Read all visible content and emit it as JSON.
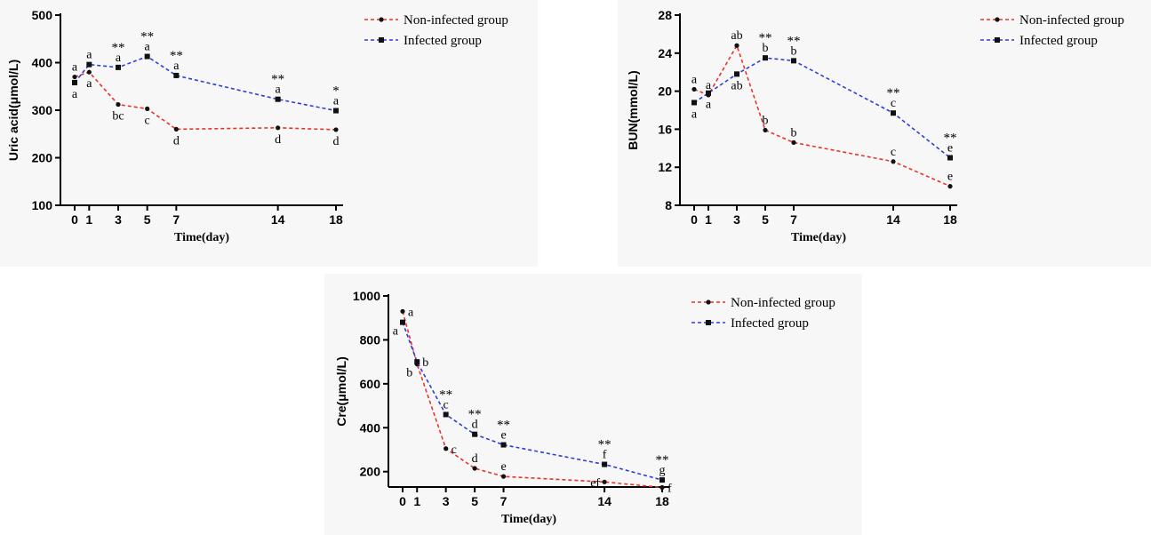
{
  "colors": {
    "noninfected": "#e8332a",
    "infected": "#2b3fd6"
  },
  "chart_data": [
    {
      "id": "uric",
      "type": "line",
      "title": "",
      "xlabel": "Time(day)",
      "ylabel": "Uric acid(μmol/L)",
      "x": [
        0,
        1,
        3,
        5,
        7,
        14,
        18
      ],
      "xticks": [
        "0",
        "1",
        "3",
        "5",
        "7",
        "14",
        "18"
      ],
      "ylim": [
        100,
        500
      ],
      "yticks": [
        100,
        200,
        300,
        400,
        500
      ],
      "legend_position": "top-right",
      "series": [
        {
          "name": "Non-infected group",
          "key": "noninfected",
          "marker": "circle",
          "values": [
            370,
            380,
            312,
            303,
            260,
            263,
            259
          ],
          "labels": [
            "a",
            "a",
            "bc",
            "c",
            "d",
            "d",
            "d"
          ],
          "label_pos": [
            "above",
            "below",
            "below",
            "below",
            "below",
            "below",
            "below"
          ]
        },
        {
          "name": "Infected group",
          "key": "infected",
          "marker": "square",
          "values": [
            358,
            396,
            390,
            413,
            373,
            323,
            299
          ],
          "labels": [
            "a",
            "a",
            "a",
            "a",
            "a",
            "a",
            "a"
          ],
          "label_pos": [
            "below",
            "above",
            "above",
            "above",
            "above",
            "above",
            "above"
          ]
        }
      ],
      "significance": [
        "",
        "",
        "**",
        "**",
        "**",
        "**",
        "*"
      ]
    },
    {
      "id": "bun",
      "type": "line",
      "title": "",
      "xlabel": "Time(day)",
      "ylabel": "BUN(mmol/L)",
      "x": [
        0,
        1,
        3,
        5,
        7,
        14,
        18
      ],
      "xticks": [
        "0",
        "1",
        "3",
        "5",
        "7",
        "14",
        "18"
      ],
      "ylim": [
        8,
        28
      ],
      "yticks": [
        8,
        12,
        16,
        20,
        24,
        28
      ],
      "legend_position": "top-right",
      "series": [
        {
          "name": "Non-infected group",
          "key": "noninfected",
          "marker": "circle",
          "values": [
            20.2,
            19.6,
            24.8,
            15.9,
            14.6,
            12.6,
            10.0
          ],
          "labels": [
            "a",
            "a",
            "ab",
            "b",
            "b",
            "c",
            "e"
          ],
          "label_pos": [
            "above",
            "above",
            "above",
            "above",
            "above",
            "above",
            "above"
          ]
        },
        {
          "name": "Infected group",
          "key": "infected",
          "marker": "square",
          "values": [
            18.8,
            19.8,
            21.8,
            23.5,
            23.2,
            17.7,
            13.0
          ],
          "labels": [
            "a",
            "a",
            "ab",
            "b",
            "b",
            "c",
            "e"
          ],
          "label_pos": [
            "below",
            "below",
            "below",
            "above",
            "above",
            "above",
            "above"
          ]
        }
      ],
      "significance": [
        "",
        "",
        "",
        "**",
        "**",
        "**",
        "**"
      ]
    },
    {
      "id": "cre",
      "type": "line",
      "title": "",
      "xlabel": "Time(day)",
      "ylabel": "Cre(μmol/L)",
      "x": [
        0,
        1,
        3,
        5,
        7,
        14,
        18
      ],
      "xticks": [
        "0",
        "1",
        "3",
        "5",
        "7",
        "14",
        "18"
      ],
      "ylim": [
        130,
        1000
      ],
      "yticks": [
        200,
        400,
        600,
        800,
        1000
      ],
      "legend_position": "top-right",
      "series": [
        {
          "name": "Non-infected group",
          "key": "noninfected",
          "marker": "circle",
          "values": [
            930,
            690,
            305,
            215,
            178,
            153,
            128
          ],
          "labels": [
            "a",
            "b",
            "c",
            "d",
            "e",
            "ef",
            "f"
          ],
          "label_pos": [
            "right",
            "left-below",
            "right",
            "above",
            "above",
            "left",
            "right"
          ]
        },
        {
          "name": "Infected group",
          "key": "infected",
          "marker": "square",
          "values": [
            880,
            700,
            460,
            370,
            322,
            233,
            162
          ],
          "labels": [
            "a",
            "b",
            "c",
            "d",
            "e",
            "f",
            "g"
          ],
          "label_pos": [
            "left-below",
            "right",
            "above",
            "above",
            "above",
            "above",
            "above"
          ]
        }
      ],
      "significance": [
        "",
        "",
        "**",
        "**",
        "**",
        "**",
        "**"
      ]
    }
  ]
}
